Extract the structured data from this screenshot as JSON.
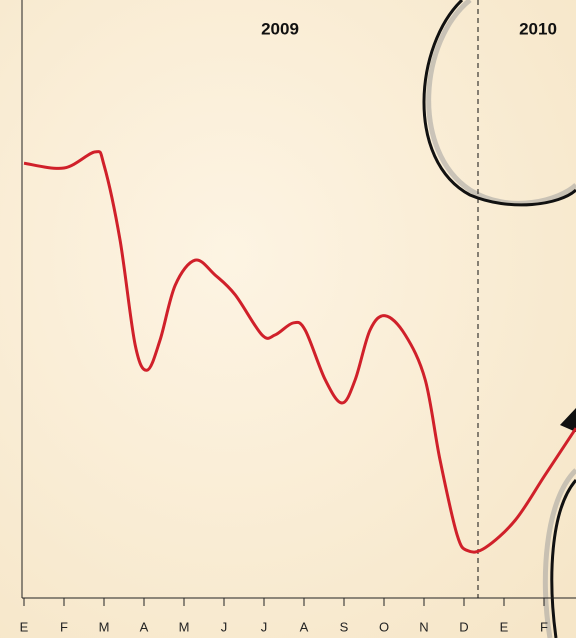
{
  "chart_data": {
    "type": "line",
    "annotations": [
      "2009",
      "2010"
    ],
    "x": [
      0,
      1,
      1.78,
      2,
      2.4,
      2.78,
      3.08,
      3.4,
      3.78,
      4.28,
      4.78,
      5.28,
      5.95,
      6.28,
      6.73,
      7.03,
      7.53,
      7.95,
      8.28,
      8.65,
      9.03,
      9.53,
      10.03,
      10.4,
      10.83,
      11.1,
      11.53,
      12.28,
      13.03,
      13.8
    ],
    "series": [
      {
        "color": "#d0202a",
        "values": [
          72.7,
          71.9,
          74.6,
          72.4,
          59.9,
          42.3,
          38.1,
          43.1,
          52.3,
          56.5,
          54.0,
          50.7,
          44.0,
          44.0,
          46.0,
          44.8,
          36.5,
          32.6,
          36.5,
          44.8,
          47.2,
          44.0,
          36.5,
          23.1,
          10.5,
          7.9,
          8.4,
          13.0,
          20.6,
          28.4
        ]
      }
    ],
    "xlim": [
      -0.05,
      13.8
    ],
    "ylim": [
      0,
      100
    ],
    "xticks": [
      {
        "value": 0,
        "label": "E"
      },
      {
        "value": 1,
        "label": "F"
      },
      {
        "value": 2,
        "label": "M"
      },
      {
        "value": 3,
        "label": "A"
      },
      {
        "value": 4,
        "label": "M"
      },
      {
        "value": 5,
        "label": "J"
      },
      {
        "value": 6,
        "label": "J"
      },
      {
        "value": 7,
        "label": "A"
      },
      {
        "value": 8,
        "label": "S"
      },
      {
        "value": 9,
        "label": "O"
      },
      {
        "value": 10,
        "label": "N"
      },
      {
        "value": 11,
        "label": "D"
      },
      {
        "value": 12,
        "label": "E"
      },
      {
        "value": 13,
        "label": "F"
      }
    ],
    "year_divider": 11.35
  }
}
